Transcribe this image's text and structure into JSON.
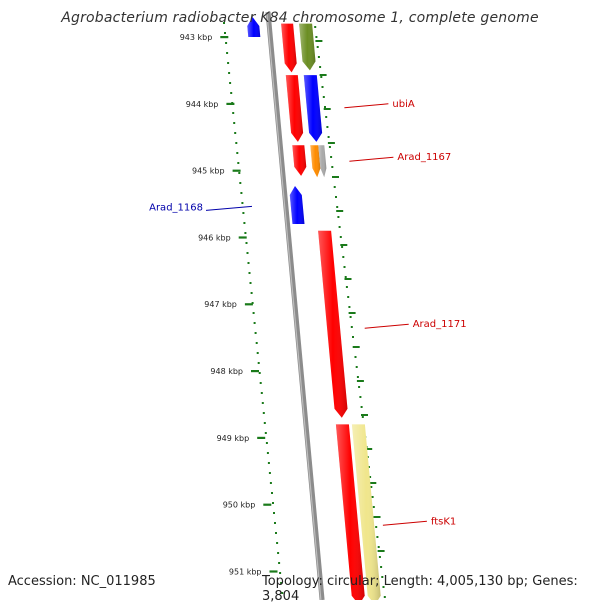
{
  "title": "Agrobacterium radiobacter K84 chromosome 1, complete genome",
  "footer": {
    "accession": "Accession: NC_011985",
    "info": "Topology: circular; Length: 4,005,130 bp; Genes: 3,804"
  },
  "colors": {
    "tick": "#1a7a1a",
    "backbone": "#8c8c8c",
    "label_red": "#cc0000",
    "label_blue": "#0000aa",
    "gene_red": "#ff0000",
    "gene_blue": "#0000ff",
    "gene_olive": "#6b8e23",
    "gene_orange": "#ff8c00",
    "gene_grey": "#a9a9a9",
    "gene_khaki": "#f0e68c"
  },
  "ticks": [
    {
      "label": "943 kbp",
      "kbp": 943
    },
    {
      "label": "944 kbp",
      "kbp": 944
    },
    {
      "label": "945 kbp",
      "kbp": 945
    },
    {
      "label": "946 kbp",
      "kbp": 946
    },
    {
      "label": "947 kbp",
      "kbp": 947
    },
    {
      "label": "948 kbp",
      "kbp": 948
    },
    {
      "label": "949 kbp",
      "kbp": 949
    },
    {
      "label": "950 kbp",
      "kbp": 950
    },
    {
      "label": "951 kbp",
      "kbp": 951
    }
  ],
  "features": [
    {
      "start": 942.7,
      "end": 943.0,
      "track": "rev_outer",
      "color": "gene_blue",
      "strand": "-"
    },
    {
      "start": 942.8,
      "end": 943.53,
      "track": "fwd_inner",
      "color": "gene_red",
      "strand": "+"
    },
    {
      "start": 942.8,
      "end": 943.5,
      "track": "fwd_outer",
      "color": "gene_olive",
      "strand": "+"
    },
    {
      "start": 943.57,
      "end": 944.57,
      "track": "fwd_inner",
      "color": "gene_red",
      "strand": "+"
    },
    {
      "start": 943.57,
      "end": 944.57,
      "track": "fwd_outer",
      "color": "gene_blue",
      "strand": "+"
    },
    {
      "start": 944.62,
      "end": 945.08,
      "track": "fwd_inner",
      "color": "gene_red",
      "strand": "+"
    },
    {
      "start": 944.62,
      "end": 945.1,
      "track": "fwd_outer",
      "color": "gene_orange",
      "strand": "+",
      "part": "a"
    },
    {
      "start": 944.62,
      "end": 945.1,
      "track": "fwd_outer",
      "color": "gene_grey",
      "strand": "+",
      "part": "b"
    },
    {
      "start": 945.23,
      "end": 945.8,
      "track": "rev_inner",
      "color": "gene_blue",
      "strand": "-"
    },
    {
      "start": 945.9,
      "end": 948.7,
      "track": "fwd_outer",
      "color": "gene_red",
      "strand": "+"
    },
    {
      "start": 948.8,
      "end": 951.5,
      "track": "fwd_outer",
      "color": "gene_red",
      "strand": "+"
    },
    {
      "start": 948.8,
      "end": 951.5,
      "track": "fwd_extra",
      "color": "gene_khaki",
      "strand": "+"
    }
  ],
  "labels": [
    {
      "text": "ubiA",
      "kbp": 944.0,
      "side": "right",
      "color": "label_red"
    },
    {
      "text": "Arad_1167",
      "kbp": 944.8,
      "side": "right",
      "color": "label_red"
    },
    {
      "text": "Arad_1168",
      "kbp": 945.55,
      "side": "left",
      "color": "label_blue"
    },
    {
      "text": "Arad_1171",
      "kbp": 947.3,
      "side": "right",
      "color": "label_red"
    },
    {
      "text": "ftsK1",
      "kbp": 950.25,
      "side": "right",
      "color": "label_red"
    }
  ]
}
